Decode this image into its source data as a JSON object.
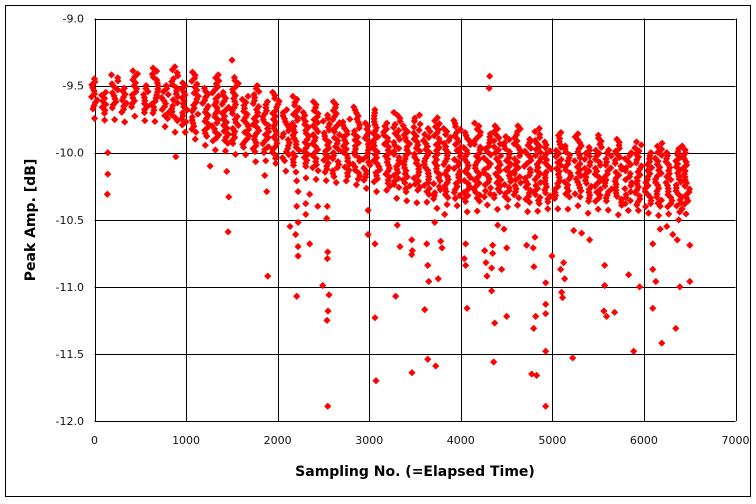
{
  "chart_data": {
    "type": "scatter",
    "xlabel": "Sampling No. (=Elapsed Time)",
    "ylabel": "Peak Amp. [dB]",
    "xlim": [
      0,
      7000
    ],
    "ylim": [
      -12.0,
      -9.0
    ],
    "xticks": [
      "0",
      "1000",
      "2000",
      "3000",
      "4000",
      "5000",
      "6000",
      "7000"
    ],
    "yticks": [
      "-9.0",
      "-9.5",
      "-10.0",
      "-10.5",
      "-11.0",
      "-11.5",
      "-12.0"
    ],
    "grid": true,
    "legend": "none",
    "marker": "diamond",
    "color": "#FF0000",
    "dense_band_stripes_x_top_bottom": [
      [
        0,
        -9.45,
        -9.68
      ],
      [
        110,
        -9.55,
        -9.72
      ],
      [
        220,
        -9.42,
        -9.68
      ],
      [
        330,
        -9.52,
        -9.7
      ],
      [
        440,
        -9.39,
        -9.68
      ],
      [
        550,
        -9.5,
        -9.72
      ],
      [
        660,
        -9.37,
        -9.72
      ],
      [
        770,
        -9.5,
        -9.75
      ],
      [
        880,
        -9.36,
        -9.78
      ],
      [
        990,
        -9.48,
        -9.8
      ],
      [
        1100,
        -9.4,
        -9.85
      ],
      [
        1210,
        -9.52,
        -9.88
      ],
      [
        1320,
        -9.42,
        -9.92
      ],
      [
        1430,
        -9.55,
        -9.95
      ],
      [
        1540,
        -9.44,
        -9.95
      ],
      [
        1650,
        -9.58,
        -9.98
      ],
      [
        1760,
        -9.5,
        -10.0
      ],
      [
        1870,
        -9.62,
        -10.02
      ],
      [
        1980,
        -9.55,
        -10.05
      ],
      [
        2090,
        -9.68,
        -10.08
      ],
      [
        2200,
        -9.58,
        -10.1
      ],
      [
        2310,
        -9.7,
        -10.12
      ],
      [
        2420,
        -9.62,
        -10.15
      ],
      [
        2530,
        -9.72,
        -10.15
      ],
      [
        2640,
        -9.62,
        -10.18
      ],
      [
        2750,
        -9.75,
        -10.18
      ],
      [
        2860,
        -9.66,
        -10.2
      ],
      [
        2970,
        -9.78,
        -10.22
      ],
      [
        3080,
        -9.68,
        -10.22
      ],
      [
        3190,
        -9.78,
        -10.25
      ],
      [
        3300,
        -9.7,
        -10.28
      ],
      [
        3410,
        -9.8,
        -10.3
      ],
      [
        3520,
        -9.72,
        -10.3
      ],
      [
        3630,
        -9.82,
        -10.32
      ],
      [
        3740,
        -9.74,
        -10.35
      ],
      [
        3850,
        -9.82,
        -10.35
      ],
      [
        3960,
        -9.76,
        -10.35
      ],
      [
        4070,
        -9.85,
        -10.38
      ],
      [
        4180,
        -9.78,
        -10.38
      ],
      [
        4290,
        -9.86,
        -10.35
      ],
      [
        4400,
        -9.8,
        -10.35
      ],
      [
        4510,
        -9.88,
        -10.35
      ],
      [
        4620,
        -9.8,
        -10.35
      ],
      [
        4730,
        -9.9,
        -10.38
      ],
      [
        4840,
        -9.82,
        -10.38
      ],
      [
        4950,
        -9.92,
        -10.38
      ],
      [
        5060,
        -9.85,
        -10.35
      ],
      [
        5170,
        -9.95,
        -10.35
      ],
      [
        5280,
        -9.86,
        -10.35
      ],
      [
        5390,
        -9.96,
        -10.38
      ],
      [
        5500,
        -9.87,
        -10.38
      ],
      [
        5610,
        -9.98,
        -10.38
      ],
      [
        5720,
        -9.9,
        -10.4
      ],
      [
        5830,
        -10.0,
        -10.4
      ],
      [
        5940,
        -9.92,
        -10.4
      ],
      [
        6050,
        -10.0,
        -10.42
      ],
      [
        6160,
        -9.93,
        -10.42
      ],
      [
        6270,
        -10.0,
        -10.42
      ],
      [
        6380,
        -9.95,
        -10.45
      ],
      [
        6460,
        -9.98,
        -10.4
      ]
    ],
    "outlier_points": [
      [
        145,
        -10.0
      ],
      [
        145,
        -10.16
      ],
      [
        140,
        -10.31
      ],
      [
        888,
        -10.03
      ],
      [
        1262,
        -10.1
      ],
      [
        1444,
        -10.14
      ],
      [
        1466,
        -10.33
      ],
      [
        1459,
        -10.59
      ],
      [
        1502,
        -9.31
      ],
      [
        1881,
        -10.29
      ],
      [
        1892,
        -10.92
      ],
      [
        1859,
        -10.17
      ],
      [
        2208,
        -10.21
      ],
      [
        2223,
        -10.29
      ],
      [
        2208,
        -10.4
      ],
      [
        2307,
        -10.38
      ],
      [
        2350,
        -10.31
      ],
      [
        2135,
        -10.55
      ],
      [
        2197,
        -10.61
      ],
      [
        2223,
        -10.52
      ],
      [
        2223,
        -10.7
      ],
      [
        2223,
        -10.77
      ],
      [
        2350,
        -10.68
      ],
      [
        2208,
        -11.07
      ],
      [
        2307,
        -10.46
      ],
      [
        2438,
        -10.4
      ],
      [
        2543,
        -10.4
      ],
      [
        2536,
        -10.49
      ],
      [
        2547,
        -10.74
      ],
      [
        2543,
        -10.79
      ],
      [
        2492,
        -10.99
      ],
      [
        2561,
        -11.06
      ],
      [
        2550,
        -11.18
      ],
      [
        2539,
        -11.25
      ],
      [
        2547,
        -11.89
      ],
      [
        2987,
        -10.61
      ],
      [
        2987,
        -10.43
      ],
      [
        3063,
        -10.68
      ],
      [
        3063,
        -11.23
      ],
      [
        3074,
        -11.7
      ],
      [
        3289,
        -11.07
      ],
      [
        3336,
        -10.7
      ],
      [
        3307,
        -10.54
      ],
      [
        3464,
        -10.65
      ],
      [
        3471,
        -10.73
      ],
      [
        3464,
        -10.76
      ],
      [
        3467,
        -11.64
      ],
      [
        3606,
        -11.17
      ],
      [
        3639,
        -10.84
      ],
      [
        3650,
        -10.96
      ],
      [
        3639,
        -11.54
      ],
      [
        3726,
        -11.59
      ],
      [
        3754,
        -10.94
      ],
      [
        3781,
        -10.66
      ],
      [
        3795,
        -10.71
      ],
      [
        3715,
        -10.52
      ],
      [
        3628,
        -10.68
      ],
      [
        3824,
        -10.46
      ],
      [
        4053,
        -10.68
      ],
      [
        4038,
        -10.79
      ],
      [
        4053,
        -10.84
      ],
      [
        4068,
        -11.16
      ],
      [
        4261,
        -10.73
      ],
      [
        4348,
        -10.69
      ],
      [
        4348,
        -10.75
      ],
      [
        4275,
        -10.82
      ],
      [
        4337,
        -10.86
      ],
      [
        4446,
        -10.87
      ],
      [
        4286,
        -10.92
      ],
      [
        4337,
        -11.03
      ],
      [
        4501,
        -11.22
      ],
      [
        4370,
        -11.27
      ],
      [
        4359,
        -11.56
      ],
      [
        4403,
        -10.54
      ],
      [
        4472,
        -10.57
      ],
      [
        4719,
        -10.69
      ],
      [
        4501,
        -10.71
      ],
      [
        4315,
        -9.43
      ],
      [
        4310,
        -9.52
      ],
      [
        4791,
        -10.71
      ],
      [
        4810,
        -10.63
      ],
      [
        4799,
        -10.85
      ],
      [
        4996,
        -10.77
      ],
      [
        4927,
        -10.97
      ],
      [
        4927,
        -11.13
      ],
      [
        4927,
        -11.2
      ],
      [
        4818,
        -11.22
      ],
      [
        4796,
        -11.31
      ],
      [
        4927,
        -11.48
      ],
      [
        4774,
        -11.65
      ],
      [
        4828,
        -11.66
      ],
      [
        4927,
        -11.89
      ],
      [
        5222,
        -11.53
      ],
      [
        5123,
        -10.82
      ],
      [
        5090,
        -10.87
      ],
      [
        5134,
        -10.94
      ],
      [
        5101,
        -11.04
      ],
      [
        5112,
        -11.08
      ],
      [
        5233,
        -10.58
      ],
      [
        5320,
        -10.6
      ],
      [
        5407,
        -10.65
      ],
      [
        5571,
        -10.84
      ],
      [
        5571,
        -10.99
      ],
      [
        5563,
        -11.18
      ],
      [
        5592,
        -11.22
      ],
      [
        5680,
        -11.19
      ],
      [
        5833,
        -10.91
      ],
      [
        5953,
        -11.0
      ],
      [
        5888,
        -11.48
      ],
      [
        6097,
        -10.87
      ],
      [
        6097,
        -11.16
      ],
      [
        6097,
        -10.68
      ],
      [
        6130,
        -10.96
      ],
      [
        6195,
        -11.42
      ],
      [
        6348,
        -11.31
      ],
      [
        6392,
        -11.0
      ],
      [
        6501,
        -10.96
      ],
      [
        6501,
        -10.69
      ],
      [
        6315,
        -10.61
      ],
      [
        6364,
        -10.65
      ],
      [
        6250,
        -10.55
      ],
      [
        6177,
        -10.57
      ]
    ]
  }
}
